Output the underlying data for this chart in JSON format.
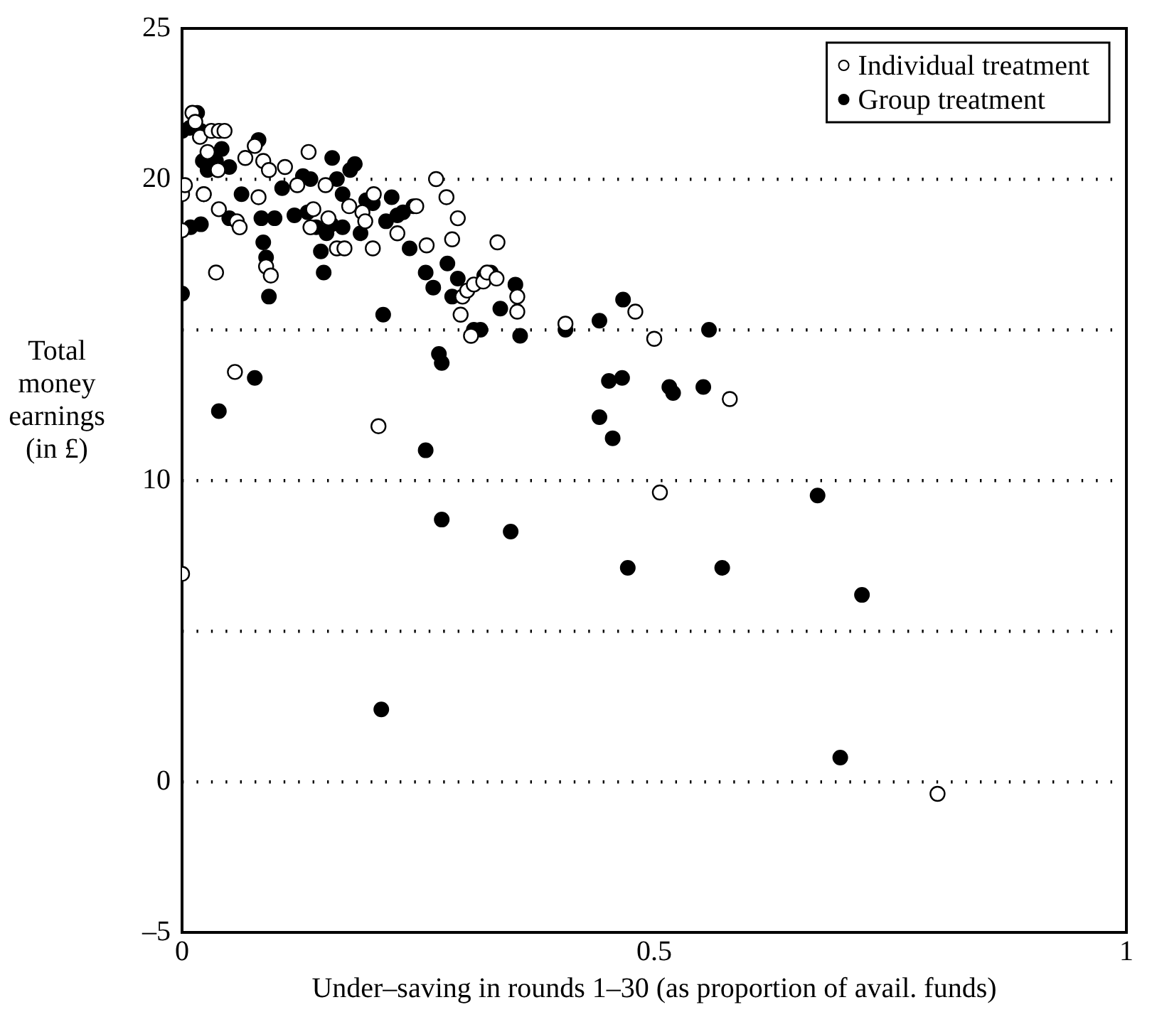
{
  "chart_data": {
    "type": "scatter",
    "xlabel": "Under–saving in rounds 1–30 (as proportion of avail. funds)",
    "ylabel": "Total money earnings (in £)",
    "xlim": [
      0,
      1
    ],
    "xticks": [
      0,
      0.5,
      1
    ],
    "ylim": [
      -5,
      25
    ],
    "yticks": [
      {
        "value": -5,
        "label": "–5"
      },
      0,
      {
        "value": 5,
        "label": null
      },
      10,
      {
        "value": 15,
        "label": null
      },
      20,
      25
    ],
    "grid": "y",
    "legend": "top right",
    "marker": "circle",
    "series": [
      {
        "name": "Individual treatment",
        "color": "#000000",
        "x": [
          0,
          0,
          0,
          0.003,
          0.011,
          0.014,
          0.019,
          0.023,
          0.027,
          0.031,
          0.039,
          0.045,
          0.036,
          0.039,
          0.038,
          0.056,
          0.058,
          0.061,
          0.067,
          0.077,
          0.086,
          0.081,
          0.092,
          0.089,
          0.094,
          0.109,
          0.122,
          0.134,
          0.136,
          0.139,
          0.152,
          0.155,
          0.164,
          0.172,
          0.177,
          0.191,
          0.194,
          0.203,
          0.208,
          0.228,
          0.202,
          0.248,
          0.269,
          0.259,
          0.28,
          0.286,
          0.292,
          0.295,
          0.297,
          0.302,
          0.306,
          0.309,
          0.319,
          0.323,
          0.333,
          0.334,
          0.355,
          0.355,
          0.406,
          0.48,
          0.5,
          0.506,
          0.58,
          0.8
        ],
        "values": [
          6.9,
          19.5,
          18.3,
          19.8,
          22.2,
          21.9,
          21.4,
          19.5,
          20.9,
          21.6,
          21.6,
          21.6,
          16.9,
          19.0,
          20.3,
          13.6,
          18.6,
          18.4,
          20.7,
          21.1,
          20.6,
          19.4,
          20.3,
          17.1,
          16.8,
          20.4,
          19.8,
          20.9,
          18.4,
          19.0,
          19.8,
          18.7,
          17.7,
          17.7,
          19.1,
          18.9,
          18.6,
          19.5,
          11.8,
          18.2,
          17.7,
          19.1,
          20.0,
          17.8,
          19.4,
          18.0,
          18.7,
          15.5,
          16.1,
          16.3,
          14.8,
          16.5,
          16.6,
          16.9,
          16.7,
          17.9,
          16.1,
          15.6,
          15.2,
          15.6,
          14.7,
          9.6,
          12.7,
          -0.4
        ]
      },
      {
        "name": "Group treatment",
        "color": "#000000",
        "x": [
          0,
          0,
          0.008,
          0.016,
          0.02,
          0.022,
          0.02,
          0.009,
          0.027,
          0.023,
          0.036,
          0.039,
          0.042,
          0.05,
          0.05,
          0.063,
          0.077,
          0.081,
          0.084,
          0.086,
          0.089,
          0.092,
          0.098,
          0.106,
          0.119,
          0.128,
          0.133,
          0.136,
          0.142,
          0.147,
          0.15,
          0.153,
          0.158,
          0.159,
          0.164,
          0.17,
          0.17,
          0.178,
          0.183,
          0.189,
          0.195,
          0.202,
          0.211,
          0.213,
          0.216,
          0.222,
          0.228,
          0.234,
          0.241,
          0.245,
          0.258,
          0.258,
          0.266,
          0.272,
          0.275,
          0.275,
          0.281,
          0.286,
          0.292,
          0.309,
          0.316,
          0.32,
          0.327,
          0.337,
          0.348,
          0.353,
          0.358,
          0.406,
          0.442,
          0.452,
          0.442,
          0.456,
          0.467,
          0.466,
          0.472,
          0.516,
          0.52,
          0.552,
          0.558,
          0.572,
          0.673,
          0.72,
          0.697
        ],
        "values": [
          16.2,
          21.6,
          21.7,
          22.2,
          21.6,
          20.6,
          18.5,
          18.4,
          20.3,
          19.5,
          20.6,
          12.3,
          21.0,
          20.4,
          18.7,
          19.5,
          13.4,
          21.3,
          18.7,
          17.9,
          17.4,
          16.1,
          18.7,
          19.7,
          18.8,
          20.1,
          18.9,
          20.0,
          18.4,
          17.6,
          16.9,
          18.2,
          18.5,
          20.7,
          20.0,
          19.5,
          18.4,
          20.3,
          20.5,
          18.2,
          19.3,
          19.2,
          2.4,
          15.5,
          18.6,
          19.4,
          18.8,
          18.9,
          17.7,
          19.1,
          16.9,
          11.0,
          16.4,
          14.2,
          13.9,
          8.7,
          17.2,
          16.1,
          16.7,
          15.0,
          15.0,
          16.8,
          16.9,
          15.7,
          8.3,
          16.5,
          14.8,
          15.0,
          15.3,
          13.3,
          12.1,
          11.4,
          16.0,
          13.4,
          7.1,
          13.1,
          12.9,
          13.1,
          15.0,
          7.1,
          9.5,
          6.2,
          0.8
        ]
      }
    ]
  }
}
